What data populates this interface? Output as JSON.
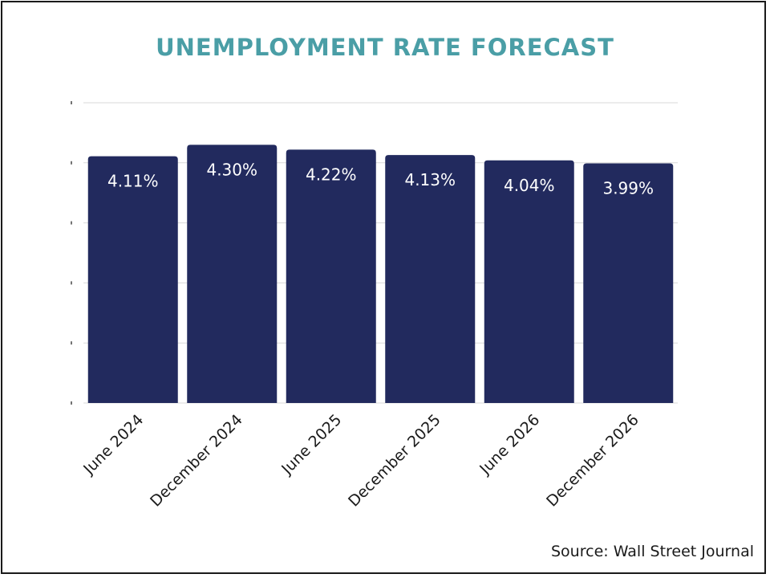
{
  "chart_data": {
    "type": "bar",
    "title": "UNEMPLOYMENT RATE FORECAST",
    "categories": [
      "June 2024",
      "December 2024",
      "June 2025",
      "December 2025",
      "June 2026",
      "December 2026"
    ],
    "values": [
      4.11,
      4.3,
      4.22,
      4.13,
      4.04,
      3.99
    ],
    "data_labels": [
      "4.11%",
      "4.30%",
      "4.22%",
      "4.13%",
      "4.04%",
      "3.99%"
    ],
    "ylim": [
      0,
      5
    ],
    "y_tick_values": [
      0,
      1,
      2,
      3,
      4,
      5
    ],
    "xlabel": "",
    "ylabel": "",
    "grid": true,
    "bar_color": "#222a5e",
    "title_color": "#4a9ea6",
    "grid_color": "#d9d9d9"
  },
  "source": "Source: Wall Street Journal"
}
